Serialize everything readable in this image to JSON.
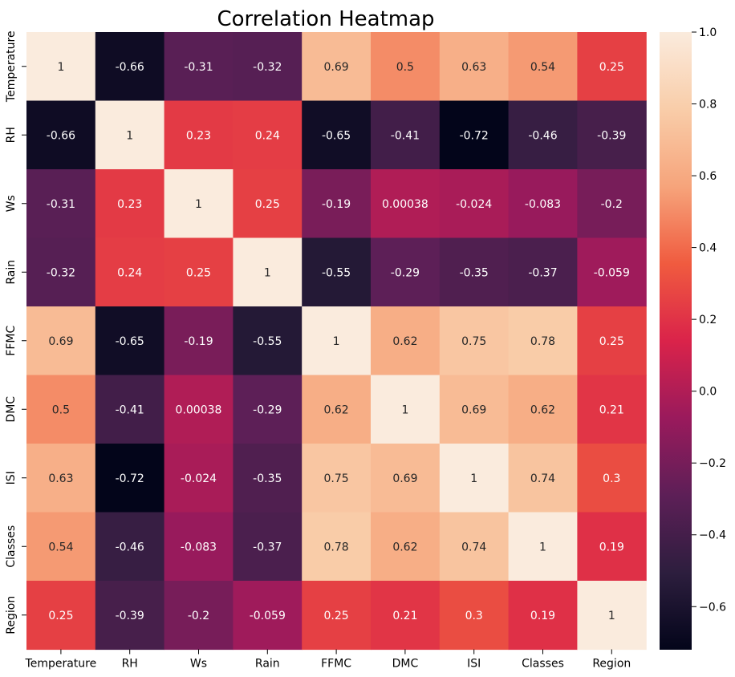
{
  "chart_data": {
    "type": "heatmap",
    "title": "Correlation Heatmap",
    "row_labels": [
      "Temperature",
      "RH",
      "Ws",
      "Rain",
      "FFMC",
      "DMC",
      "ISI",
      "Classes",
      "Region"
    ],
    "col_labels": [
      "Temperature",
      "RH",
      "Ws",
      "Rain",
      "FFMC",
      "DMC",
      "ISI",
      "Classes",
      "Region"
    ],
    "values": [
      [
        1,
        -0.66,
        -0.31,
        -0.32,
        0.69,
        0.5,
        0.63,
        0.54,
        0.25
      ],
      [
        -0.66,
        1,
        0.23,
        0.24,
        -0.65,
        -0.41,
        -0.72,
        -0.46,
        -0.39
      ],
      [
        -0.31,
        0.23,
        1,
        0.25,
        -0.19,
        0.00038,
        -0.024,
        -0.083,
        -0.2
      ],
      [
        -0.32,
        0.24,
        0.25,
        1,
        -0.55,
        -0.29,
        -0.35,
        -0.37,
        -0.059
      ],
      [
        0.69,
        -0.65,
        -0.19,
        -0.55,
        1,
        0.62,
        0.75,
        0.78,
        0.25
      ],
      [
        0.5,
        -0.41,
        0.00038,
        -0.29,
        0.62,
        1,
        0.69,
        0.62,
        0.21
      ],
      [
        0.63,
        -0.72,
        -0.024,
        -0.35,
        0.75,
        0.69,
        1,
        0.74,
        0.3
      ],
      [
        0.54,
        -0.46,
        -0.083,
        -0.37,
        0.78,
        0.62,
        0.74,
        1,
        0.19
      ],
      [
        0.25,
        -0.39,
        -0.2,
        -0.059,
        0.25,
        0.21,
        0.3,
        0.19,
        1
      ]
    ],
    "annotations": [
      [
        "1",
        "-0.66",
        "-0.31",
        "-0.32",
        "0.69",
        "0.5",
        "0.63",
        "0.54",
        "0.25"
      ],
      [
        "-0.66",
        "1",
        "0.23",
        "0.24",
        "-0.65",
        "-0.41",
        "-0.72",
        "-0.46",
        "-0.39"
      ],
      [
        "-0.31",
        "0.23",
        "1",
        "0.25",
        "-0.19",
        "0.00038",
        "-0.024",
        "-0.083",
        "-0.2"
      ],
      [
        "-0.32",
        "0.24",
        "0.25",
        "1",
        "-0.55",
        "-0.29",
        "-0.35",
        "-0.37",
        "-0.059"
      ],
      [
        "0.69",
        "-0.65",
        "-0.19",
        "-0.55",
        "1",
        "0.62",
        "0.75",
        "0.78",
        "0.25"
      ],
      [
        "0.5",
        "-0.41",
        "0.00038",
        "-0.29",
        "0.62",
        "1",
        "0.69",
        "0.62",
        "0.21"
      ],
      [
        "0.63",
        "-0.72",
        "-0.024",
        "-0.35",
        "0.75",
        "0.69",
        "1",
        "0.74",
        "0.3"
      ],
      [
        "0.54",
        "-0.46",
        "-0.083",
        "-0.37",
        "0.78",
        "0.62",
        "0.74",
        "1",
        "0.19"
      ],
      [
        "0.25",
        "-0.39",
        "-0.2",
        "-0.059",
        "0.25",
        "0.21",
        "0.3",
        "0.19",
        "1"
      ]
    ],
    "colorbar": {
      "vmin": -0.72,
      "vmax": 1,
      "ticks": [
        1.0,
        0.8,
        0.6,
        0.4,
        0.2,
        0.0,
        -0.2,
        -0.4,
        -0.6
      ],
      "tick_labels": [
        "1.0",
        "0.8",
        "0.6",
        "0.4",
        "0.2",
        "0.0",
        "−0.2",
        "−0.4",
        "−0.6"
      ]
    },
    "colormap": "rocket",
    "colormap_stops": [
      "#03051a",
      "#2d1e3e",
      "#5d1f57",
      "#9a1a5c",
      "#da234a",
      "#f05b3f",
      "#f6a47b",
      "#f9cda9",
      "#faebdd"
    ],
    "grid": false,
    "legend_position": "right"
  }
}
